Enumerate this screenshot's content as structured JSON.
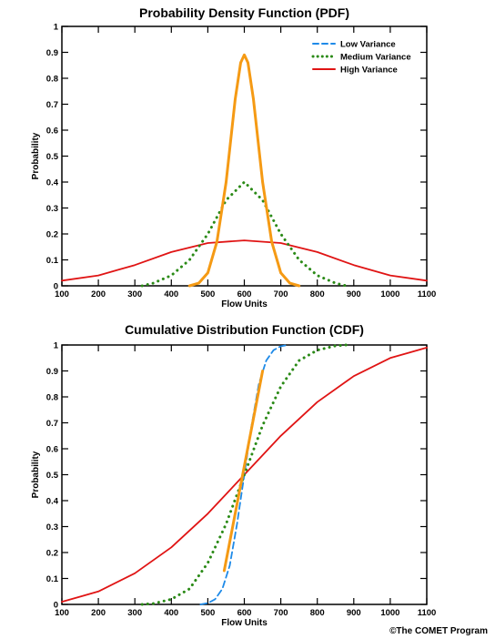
{
  "chart_data": [
    {
      "type": "line",
      "title": "Probability Density Function (PDF)",
      "xlabel": "Flow Units",
      "ylabel": "Probability",
      "xlim": [
        100,
        1100
      ],
      "ylim": [
        0,
        1
      ],
      "xticks": [
        "100",
        "200",
        "300",
        "400",
        "500",
        "600",
        "700",
        "800",
        "900",
        "1000",
        "1100"
      ],
      "yticks": [
        "0",
        "0.1",
        "0.2",
        "0.3",
        "0.4",
        "0.5",
        "0.6",
        "0.7",
        "0.8",
        "0.9",
        "1"
      ],
      "grid": false,
      "legend": "top-right",
      "series": [
        {
          "name": "Low Variance",
          "color": "#f59a14",
          "dash": "solid",
          "width": 3,
          "x": [
            450,
            475,
            500,
            525,
            550,
            575,
            590,
            600,
            610,
            625,
            650,
            675,
            700,
            725,
            750
          ],
          "y": [
            0.0,
            0.01,
            0.05,
            0.17,
            0.4,
            0.72,
            0.86,
            0.89,
            0.86,
            0.72,
            0.4,
            0.17,
            0.05,
            0.01,
            0.0
          ]
        },
        {
          "name": "Medium Variance",
          "color": "#2a8a16",
          "dash": "dotted",
          "width": 3,
          "x": [
            320,
            350,
            400,
            450,
            500,
            550,
            600,
            650,
            700,
            750,
            800,
            850,
            880
          ],
          "y": [
            0.0,
            0.01,
            0.04,
            0.1,
            0.2,
            0.33,
            0.4,
            0.33,
            0.2,
            0.1,
            0.04,
            0.01,
            0.0
          ]
        },
        {
          "name": "High Variance",
          "color": "#e01414",
          "dash": "solid",
          "width": 1.8,
          "x": [
            100,
            200,
            300,
            400,
            500,
            600,
            700,
            800,
            900,
            1000,
            1100
          ],
          "y": [
            0.02,
            0.04,
            0.08,
            0.13,
            0.165,
            0.175,
            0.165,
            0.13,
            0.08,
            0.04,
            0.02
          ]
        }
      ]
    },
    {
      "type": "line",
      "title": "Cumulative Distribution Function (CDF)",
      "xlabel": "Flow Units",
      "ylabel": "Probability",
      "xlim": [
        100,
        1100
      ],
      "ylim": [
        0,
        1
      ],
      "xticks": [
        "100",
        "200",
        "300",
        "400",
        "500",
        "600",
        "700",
        "800",
        "900",
        "1000",
        "1100"
      ],
      "yticks": [
        "0",
        "0.1",
        "0.2",
        "0.3",
        "0.4",
        "0.5",
        "0.6",
        "0.7",
        "0.8",
        "0.9",
        "1"
      ],
      "grid": false,
      "series": [
        {
          "name": "Low Variance",
          "color": "#1e8ae8",
          "dash": "dashed",
          "width": 1.8,
          "x": [
            480,
            500,
            520,
            540,
            560,
            580,
            600,
            620,
            640,
            660,
            680,
            700,
            720
          ],
          "y": [
            0.0,
            0.005,
            0.02,
            0.06,
            0.15,
            0.31,
            0.5,
            0.69,
            0.85,
            0.94,
            0.98,
            0.995,
            1.0
          ]
        },
        {
          "name": "Low Variance",
          "color": "#f59a14",
          "dash": "solid",
          "width": 3,
          "x": [
            545,
            650
          ],
          "y": [
            0.13,
            0.9
          ]
        },
        {
          "name": "Medium Variance",
          "color": "#2a8a16",
          "dash": "dotted",
          "width": 3,
          "x": [
            320,
            350,
            400,
            450,
            500,
            550,
            600,
            650,
            700,
            750,
            800,
            850,
            880
          ],
          "y": [
            0.0,
            0.003,
            0.02,
            0.06,
            0.16,
            0.31,
            0.5,
            0.69,
            0.84,
            0.94,
            0.98,
            0.997,
            1.0
          ]
        },
        {
          "name": "High Variance",
          "color": "#e01414",
          "dash": "solid",
          "width": 1.8,
          "x": [
            100,
            150,
            200,
            300,
            400,
            500,
            600,
            700,
            800,
            900,
            1000,
            1050,
            1100
          ],
          "y": [
            0.01,
            0.03,
            0.05,
            0.12,
            0.22,
            0.35,
            0.5,
            0.65,
            0.78,
            0.88,
            0.95,
            0.97,
            0.99
          ]
        }
      ]
    }
  ],
  "legend": {
    "items": [
      {
        "label": "Low Variance",
        "color": "#1e8ae8",
        "dash": "dashed"
      },
      {
        "label": "Medium Variance",
        "color": "#2a8a16",
        "dash": "dotted"
      },
      {
        "label": "High Variance",
        "color": "#e01414",
        "dash": "solid"
      }
    ]
  },
  "credit": "©The COMET Program"
}
